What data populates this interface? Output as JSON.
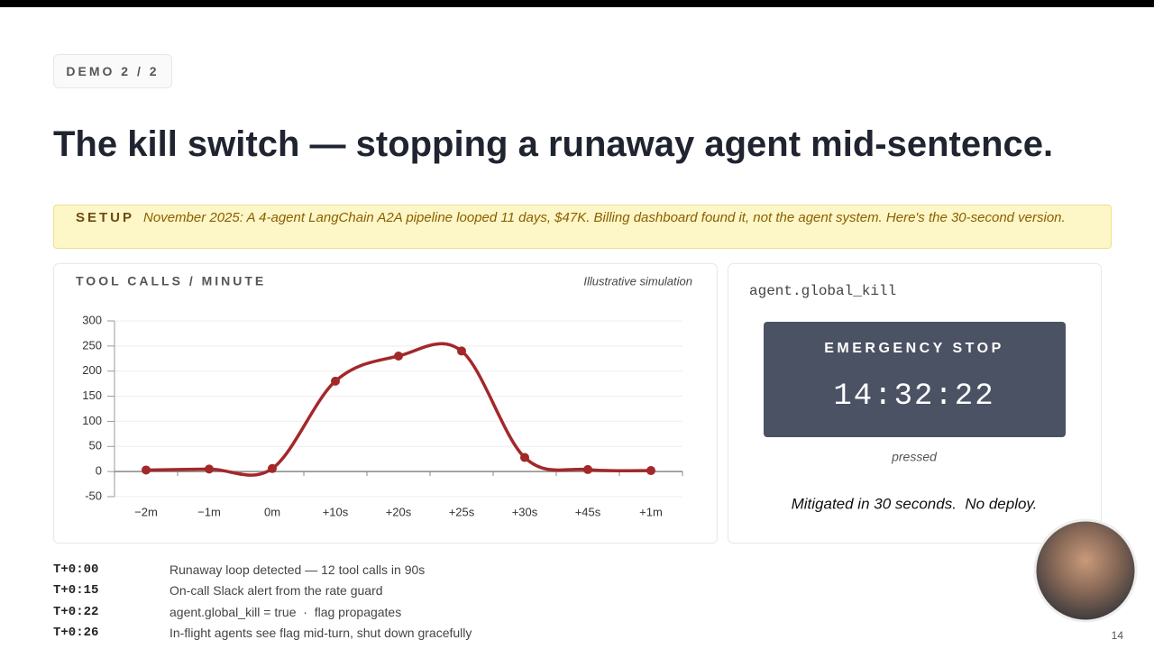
{
  "badge": "DEMO 2 / 2",
  "title": "The kill switch — stopping a runaway agent mid-sentence.",
  "setup": {
    "label": "SETUP",
    "text": "November 2025: A 4-agent LangChain A2A pipeline looped 11 days, $47K. Billing dashboard found it, not the agent system. Here's the 30-second version."
  },
  "chart_data": {
    "type": "line",
    "title": "TOOL CALLS / MINUTE",
    "subtitle": "Illustrative simulation",
    "categories": [
      "−2m",
      "−1m",
      "0m",
      "+10s",
      "+20s",
      "+25s",
      "+30s",
      "+45s",
      "+1m"
    ],
    "series": [
      {
        "name": "Tool calls",
        "color": "#a3282a",
        "values": [
          3,
          5,
          6,
          180,
          230,
          240,
          28,
          4,
          2
        ]
      }
    ],
    "ylim": [
      -50,
      300
    ],
    "yticks": [
      -50,
      0,
      50,
      100,
      150,
      200,
      250,
      300
    ],
    "grid": true,
    "smooth": true
  },
  "panel": {
    "code": "agent.global_kill",
    "button": "EMERGENCY STOP",
    "time": "14:32:22",
    "status": "pressed",
    "summary": "Mitigated in 30 seconds.  No deploy."
  },
  "timeline": [
    {
      "time": "T+0:00",
      "event": "Runaway loop detected — 12 tool calls in 90s"
    },
    {
      "time": "T+0:15",
      "event": "On-call Slack alert from the rate guard"
    },
    {
      "time": "T+0:22",
      "event": "agent.global_kill = true  ·  flag propagates"
    },
    {
      "time": "T+0:26",
      "event": "In-flight agents see flag mid-turn, shut down gracefully"
    }
  ],
  "page_number": "14"
}
